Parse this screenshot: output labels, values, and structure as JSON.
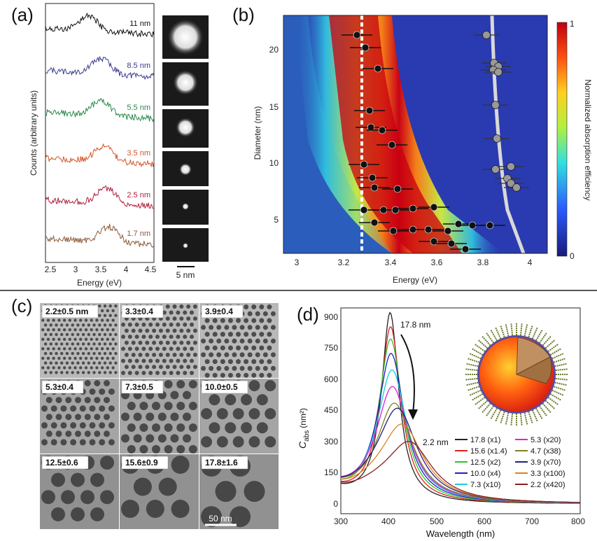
{
  "figure": {
    "panel_labels": {
      "a": "(a)",
      "b": "(b)",
      "c": "(c)",
      "d": "(d)"
    }
  },
  "panel_a": {
    "ylabel": "Counts (arbitrary units)",
    "xlabel": "Energy (eV)",
    "xticks": [
      "2.5",
      "3",
      "3.5",
      "4",
      "4.5"
    ],
    "scale_bar_label": "5 nm",
    "spectra": [
      {
        "label": "11 nm",
        "color": "#111111"
      },
      {
        "label": "8.5 nm",
        "color": "#3a3a8c"
      },
      {
        "label": "5.5 nm",
        "color": "#2a8a4a"
      },
      {
        "label": "3.5 nm",
        "color": "#d2552a"
      },
      {
        "label": "2.5 nm",
        "color": "#b0203a"
      },
      {
        "label": "1.7 nm",
        "color": "#8a5a3a"
      }
    ]
  },
  "panel_b": {
    "xlabel": "Energy (eV)",
    "ylabel": "Diameter (nm)",
    "colorbar_label": "Normalized absorption efficiency",
    "colorbar_ticks": [
      "1",
      "0"
    ],
    "xticks": [
      "3",
      "3.2",
      "3.4",
      "3.6",
      "3.8",
      "4"
    ],
    "yticks": [
      "5",
      "10",
      "15",
      "20"
    ]
  },
  "panel_c": {
    "tiles": [
      "2.2±0.5 nm",
      "3.3±0.4",
      "3.9±0.4",
      "5.3±0.4",
      "7.3±0.5",
      "10.0±0.5",
      "12.5±0.6",
      "15.6±0.9",
      "17.8±1.6"
    ],
    "scale_bar_label": "50 nm"
  },
  "panel_d": {
    "ylabel": "C",
    "ylabel_sub": "abs",
    "ylabel_unit": "(nm²)",
    "xlabel": "Wavelength (nm)",
    "xticks": [
      "300",
      "400",
      "500",
      "600",
      "700",
      "800"
    ],
    "yticks": [
      "0",
      "150",
      "300",
      "450",
      "600",
      "750",
      "900"
    ],
    "annotation_top": "17.8 nm",
    "annotation_bottom": "2.2 nm",
    "legend": [
      {
        "label": "17.8 (x1)",
        "color": "#222222"
      },
      {
        "label": "15.6 (x1.4)",
        "color": "#e02020"
      },
      {
        "label": "12.5 (x2)",
        "color": "#30c030"
      },
      {
        "label": "10.0 (x4)",
        "color": "#2020c0"
      },
      {
        "label": "7.3 (x10)",
        "color": "#20c8e0"
      },
      {
        "label": "5.3 (x20)",
        "color": "#e020e0"
      },
      {
        "label": "4.7 (x38)",
        "color": "#808020"
      },
      {
        "label": "3.9 (x70)",
        "color": "#202080"
      },
      {
        "label": "3.3 (x100)",
        "color": "#e08020"
      },
      {
        "label": "2.2 (x420)",
        "color": "#8a2020"
      }
    ]
  }
}
